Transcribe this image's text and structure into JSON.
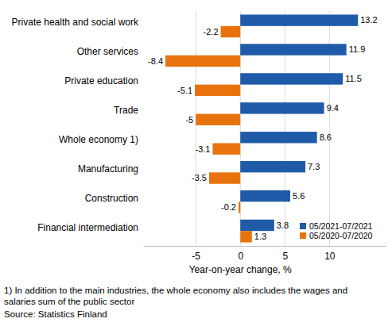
{
  "chart_data": {
    "type": "bar",
    "orientation": "horizontal",
    "categories": [
      "Private health and social work",
      "Other services",
      "Private education",
      "Trade",
      "Whole economy 1)",
      "Manufacturing",
      "Construction",
      "Financial intermediation"
    ],
    "series": [
      {
        "name": "05/2021-07/2021",
        "color": "#1f5ba8",
        "values": [
          13.2,
          11.9,
          11.5,
          9.4,
          8.6,
          7.3,
          5.6,
          3.8
        ]
      },
      {
        "name": "05/2020-07/2020",
        "color": "#e8730e",
        "values": [
          -2.2,
          -8.4,
          -5.1,
          -5.0,
          -3.1,
          -3.5,
          -0.2,
          1.3
        ]
      }
    ],
    "x_label": "Year-on-year change, %",
    "xlim": [
      -10.9,
      16.3
    ],
    "xticks": [
      -5,
      0,
      5,
      10
    ],
    "grid": true,
    "legend": "lower right",
    "data_labels": true,
    "notes": [
      "1) In addition to the main industries, the whole economy also includes the wages and",
      "salaries sum of the public sector"
    ],
    "source": "Source: Statistics Finland"
  }
}
